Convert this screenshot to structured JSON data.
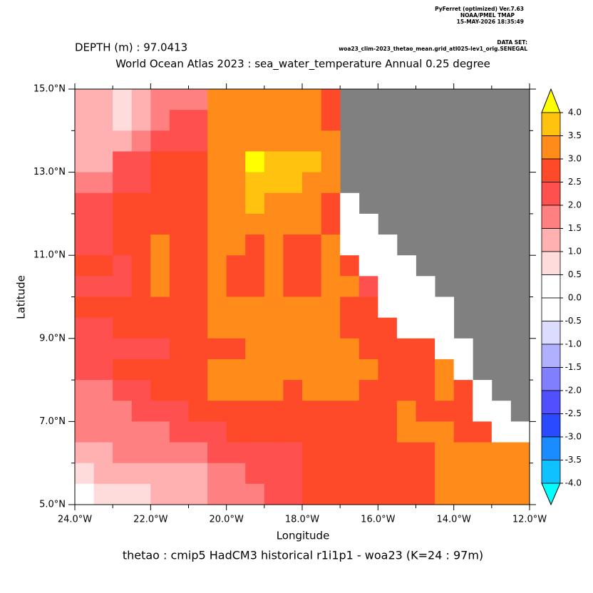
{
  "chart_data": {
    "type": "heatmap",
    "header": [
      "PyFerret (optimized) Ver.7.63",
      "NOAA/PMEL TMAP",
      "15-MAY-2026 18:35:49"
    ],
    "dataset_label": "DATA SET:",
    "dataset": "woa23_clim-2023_thetao_mean.grid_atl025-lev1_orig.SENEGAL",
    "depth_label": "DEPTH (m) : 97.0413",
    "title": "World Ocean Atlas 2023 : sea_water_temperature Annual  0.25 degree",
    "xlabel": "Longitude",
    "ylabel": "Latitude",
    "footer": "thetao : cmip5 HadCM3 historical r1i1p1 - woa23  (K=24 : 97m)",
    "xlim": [
      -24,
      -12
    ],
    "ylim": [
      5,
      15
    ],
    "xticks": [
      {
        "value": -24,
        "label": "24.0°W"
      },
      {
        "value": -22,
        "label": "22.0°W"
      },
      {
        "value": -20,
        "label": "20.0°W"
      },
      {
        "value": -18,
        "label": "18.0°W"
      },
      {
        "value": -16,
        "label": "16.0°W"
      },
      {
        "value": -14,
        "label": "14.0°W"
      },
      {
        "value": -12,
        "label": "12.0°W"
      }
    ],
    "xminorticks": [
      -23,
      -21,
      -19,
      -17,
      -15,
      -13
    ],
    "yticks": [
      {
        "value": 5,
        "label": "5.0°N"
      },
      {
        "value": 7,
        "label": "7.0°N"
      },
      {
        "value": 9,
        "label": "9.0°N"
      },
      {
        "value": 11,
        "label": "11.0°N"
      },
      {
        "value": 13,
        "label": "13.0°N"
      },
      {
        "value": 15,
        "label": "15.0°N"
      }
    ],
    "yminorticks": [
      6,
      8,
      10,
      12,
      14
    ],
    "missing_color": "#808080",
    "x": [
      -23.75,
      -23.25,
      -22.75,
      -22.25,
      -21.75,
      -21.25,
      -20.75,
      -20.25,
      -19.75,
      -19.25,
      -18.75,
      -18.25,
      -17.75,
      -17.25,
      -16.75,
      -16.25,
      -15.75,
      -15.25,
      -14.75,
      -14.25,
      -13.75,
      -13.25,
      -12.75,
      -12.25
    ],
    "y": [
      14.75,
      14.25,
      13.75,
      13.25,
      12.75,
      12.25,
      11.75,
      11.25,
      10.75,
      10.25,
      9.75,
      9.25,
      8.75,
      8.25,
      7.75,
      7.25,
      6.75,
      6.25,
      5.75,
      5.25
    ],
    "z": [
      [
        1.2,
        1.2,
        0.7,
        1.2,
        1.7,
        1.7,
        1.7,
        3.2,
        3.2,
        3.2,
        3.2,
        3.2,
        3.2,
        2.7,
        null,
        null,
        null,
        null,
        null,
        null,
        null,
        null,
        null,
        null
      ],
      [
        1.2,
        1.2,
        0.7,
        1.2,
        1.7,
        2.2,
        2.2,
        3.2,
        3.2,
        3.2,
        3.2,
        3.2,
        3.2,
        2.7,
        null,
        null,
        null,
        null,
        null,
        null,
        null,
        null,
        null,
        null
      ],
      [
        1.2,
        1.2,
        1.2,
        1.7,
        2.2,
        2.2,
        2.2,
        3.2,
        3.2,
        3.2,
        3.2,
        3.2,
        3.2,
        3.2,
        null,
        null,
        null,
        null,
        null,
        null,
        null,
        null,
        null,
        null
      ],
      [
        1.2,
        1.2,
        2.2,
        2.2,
        2.7,
        2.7,
        2.7,
        3.2,
        3.2,
        4.2,
        3.7,
        3.7,
        3.7,
        3.2,
        null,
        null,
        null,
        null,
        null,
        null,
        null,
        null,
        null,
        null
      ],
      [
        1.7,
        1.7,
        2.2,
        2.2,
        2.7,
        2.7,
        2.7,
        3.2,
        3.2,
        3.7,
        3.7,
        3.7,
        3.2,
        3.2,
        null,
        null,
        null,
        null,
        null,
        null,
        null,
        null,
        null,
        null
      ],
      [
        2.2,
        2.2,
        2.7,
        2.7,
        2.7,
        2.7,
        2.7,
        3.2,
        3.2,
        3.7,
        3.2,
        3.2,
        3.2,
        2.7,
        0.2,
        null,
        null,
        null,
        null,
        null,
        null,
        null,
        null,
        null
      ],
      [
        2.2,
        2.2,
        2.7,
        2.7,
        2.7,
        2.7,
        2.7,
        3.2,
        3.2,
        3.2,
        3.2,
        3.2,
        3.2,
        2.7,
        0.2,
        0.2,
        null,
        null,
        null,
        null,
        null,
        null,
        null,
        null
      ],
      [
        2.2,
        2.2,
        2.7,
        2.7,
        3.2,
        2.7,
        2.7,
        3.2,
        3.2,
        2.7,
        3.2,
        2.7,
        2.7,
        3.2,
        0.2,
        0.2,
        0.2,
        null,
        null,
        null,
        null,
        null,
        null,
        null
      ],
      [
        2.7,
        2.7,
        2.2,
        2.7,
        3.2,
        2.7,
        2.7,
        3.2,
        2.7,
        2.7,
        3.2,
        2.7,
        2.7,
        3.2,
        2.7,
        0.2,
        0.2,
        0.2,
        null,
        null,
        null,
        null,
        null,
        null
      ],
      [
        2.2,
        2.2,
        2.2,
        2.7,
        3.2,
        2.7,
        2.7,
        3.2,
        2.7,
        2.7,
        3.2,
        2.7,
        2.7,
        3.2,
        3.2,
        2.2,
        0.2,
        0.2,
        0.2,
        null,
        null,
        null,
        null,
        null
      ],
      [
        2.7,
        2.7,
        2.7,
        2.7,
        2.7,
        2.7,
        2.7,
        3.2,
        3.2,
        3.2,
        3.2,
        3.2,
        3.2,
        3.2,
        2.7,
        2.7,
        0.2,
        0.2,
        0.2,
        0.2,
        null,
        null,
        null,
        null
      ],
      [
        2.2,
        2.2,
        2.7,
        2.7,
        2.7,
        2.7,
        2.7,
        3.2,
        3.2,
        3.2,
        3.2,
        3.2,
        3.2,
        3.2,
        2.7,
        2.7,
        2.7,
        0.2,
        0.2,
        0.2,
        null,
        null,
        null,
        null
      ],
      [
        2.2,
        2.2,
        2.2,
        2.2,
        2.2,
        2.7,
        2.7,
        2.7,
        2.7,
        3.2,
        3.2,
        3.2,
        3.2,
        3.2,
        3.2,
        2.7,
        2.7,
        2.7,
        2.7,
        0.2,
        0.2,
        null,
        null,
        null
      ],
      [
        2.2,
        2.2,
        2.7,
        2.7,
        2.7,
        2.7,
        2.7,
        3.2,
        3.2,
        3.2,
        3.2,
        3.2,
        3.2,
        3.2,
        3.2,
        3.2,
        2.7,
        2.7,
        2.7,
        3.2,
        0.2,
        null,
        null,
        null
      ],
      [
        1.7,
        1.7,
        2.2,
        2.2,
        2.7,
        2.7,
        2.7,
        3.2,
        3.2,
        3.2,
        3.2,
        2.7,
        3.2,
        3.2,
        3.2,
        2.7,
        2.7,
        2.7,
        2.7,
        3.2,
        2.7,
        0.2,
        null,
        null
      ],
      [
        1.7,
        1.7,
        1.7,
        2.2,
        2.2,
        2.2,
        2.7,
        2.7,
        2.7,
        2.7,
        2.7,
        2.7,
        2.7,
        2.7,
        2.7,
        2.7,
        2.7,
        3.2,
        2.7,
        2.7,
        2.7,
        0.2,
        0.2,
        null
      ],
      [
        1.7,
        1.7,
        1.7,
        1.7,
        1.7,
        2.2,
        2.2,
        2.2,
        2.7,
        2.7,
        2.7,
        2.7,
        2.7,
        2.7,
        2.7,
        2.7,
        2.7,
        3.2,
        3.2,
        3.2,
        2.7,
        2.7,
        0.2,
        0.2
      ],
      [
        1.2,
        1.2,
        1.7,
        1.7,
        1.7,
        1.7,
        1.7,
        2.2,
        2.2,
        2.2,
        2.2,
        2.2,
        2.7,
        2.7,
        2.7,
        2.7,
        2.7,
        2.7,
        2.7,
        3.2,
        3.2,
        3.2,
        3.2,
        3.2
      ],
      [
        0.7,
        1.2,
        1.2,
        1.2,
        1.2,
        1.2,
        1.2,
        1.7,
        1.7,
        2.2,
        2.2,
        2.2,
        2.7,
        2.7,
        2.7,
        2.7,
        2.7,
        2.7,
        2.7,
        3.2,
        3.2,
        3.2,
        3.2,
        3.2
      ],
      [
        0.2,
        0.7,
        0.7,
        0.7,
        1.2,
        1.2,
        1.2,
        1.7,
        1.7,
        1.7,
        2.2,
        2.2,
        2.7,
        2.7,
        2.7,
        2.7,
        2.7,
        2.7,
        2.7,
        3.2,
        3.2,
        3.2,
        3.2,
        3.2
      ]
    ],
    "colorbar": {
      "levels": [
        {
          "value": 4,
          "label": "4.0"
        },
        {
          "value": 3.5,
          "label": "3.5"
        },
        {
          "value": 3,
          "label": "3.0"
        },
        {
          "value": 2.5,
          "label": "2.5"
        },
        {
          "value": 2,
          "label": "2.0"
        },
        {
          "value": 1.5,
          "label": "1.5"
        },
        {
          "value": 1,
          "label": "1.0"
        },
        {
          "value": 0.5,
          "label": "0.5"
        },
        {
          "value": 0,
          "label": "0.0"
        },
        {
          "value": -0.5,
          "label": "-0.5"
        },
        {
          "value": -1,
          "label": "-1.0"
        },
        {
          "value": -1.5,
          "label": "-1.5"
        },
        {
          "value": -2,
          "label": "-2.0"
        },
        {
          "value": -2.5,
          "label": "-2.5"
        },
        {
          "value": -3,
          "label": "-3.0"
        },
        {
          "value": -3.5,
          "label": "-3.5"
        },
        {
          "value": -4,
          "label": "-4.0"
        }
      ],
      "colors": [
        "#ffc20e",
        "#ff8c1a",
        "#ff4a2a",
        "#ff5050",
        "#ff8080",
        "#ffb0b0",
        "#ffdcdc",
        "#ffffff",
        "#ffffff",
        "#dcdcff",
        "#b0b0ff",
        "#8080ff",
        "#5050ff",
        "#2a4aff",
        "#1a8cff",
        "#0ec2ff"
      ],
      "over_color": "#ffff00",
      "under_color": "#00ffff"
    }
  }
}
